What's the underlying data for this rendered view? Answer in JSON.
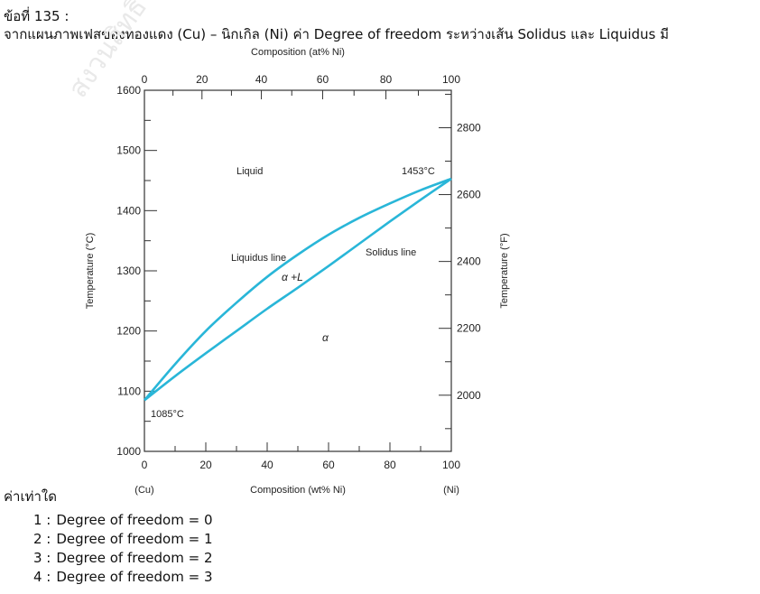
{
  "question": {
    "number": "ข้อที่ 135 :",
    "text": "จากแผนภาพเฟสของทองแดง (Cu) – นิกเกิล (Ni) ค่า Degree of freedom ระหว่างเส้น Solidus และ Liquidus มี",
    "continuation": "ค่าเท่าใด"
  },
  "choices": [
    {
      "label": "1 :",
      "text": "Degree of freedom = 0"
    },
    {
      "label": "2 :",
      "text": "Degree of freedom = 1"
    },
    {
      "label": "3 :",
      "text": "Degree of freedom = 2"
    },
    {
      "label": "4 :",
      "text": "Degree of freedom = 3"
    }
  ],
  "chart_data": {
    "type": "line",
    "top_axis_label": "Composition (at% Ni)",
    "top_ticks": [
      "0",
      "20",
      "40",
      "60",
      "80",
      "100"
    ],
    "xlabel": "Composition (wt% Ni)",
    "x_ticks": [
      "0",
      "20",
      "40",
      "60",
      "80",
      "100"
    ],
    "x_end_labels": {
      "left": "(Cu)",
      "right": "(Ni)"
    },
    "xlim": [
      0,
      100
    ],
    "ylabel": "Temperature (°C)",
    "y_ticks": [
      "1000",
      "1100",
      "1200",
      "1300",
      "1400",
      "1500",
      "1600"
    ],
    "ylim": [
      1000,
      1600
    ],
    "y2label": "Temperature (°F)",
    "y2_ticks": [
      "2000",
      "2200",
      "2400",
      "2600",
      "2800"
    ],
    "series": [
      {
        "name": "Liquidus line",
        "x": [
          0,
          10,
          20,
          30,
          40,
          50,
          60,
          70,
          80,
          90,
          100
        ],
        "y": [
          1085,
          1145,
          1200,
          1247,
          1290,
          1327,
          1360,
          1388,
          1412,
          1434,
          1453
        ]
      },
      {
        "name": "Solidus line",
        "x": [
          0,
          10,
          20,
          30,
          40,
          50,
          60,
          70,
          80,
          90,
          100
        ],
        "y": [
          1085,
          1125,
          1163,
          1200,
          1237,
          1272,
          1308,
          1345,
          1382,
          1418,
          1453
        ]
      }
    ],
    "annotations": {
      "liquid": "Liquid",
      "alpha_plus_l": "α +L",
      "alpha": "α",
      "melt_ni": "1453°C",
      "melt_cu": "1085°C"
    },
    "line_color": "#29b6d8"
  }
}
